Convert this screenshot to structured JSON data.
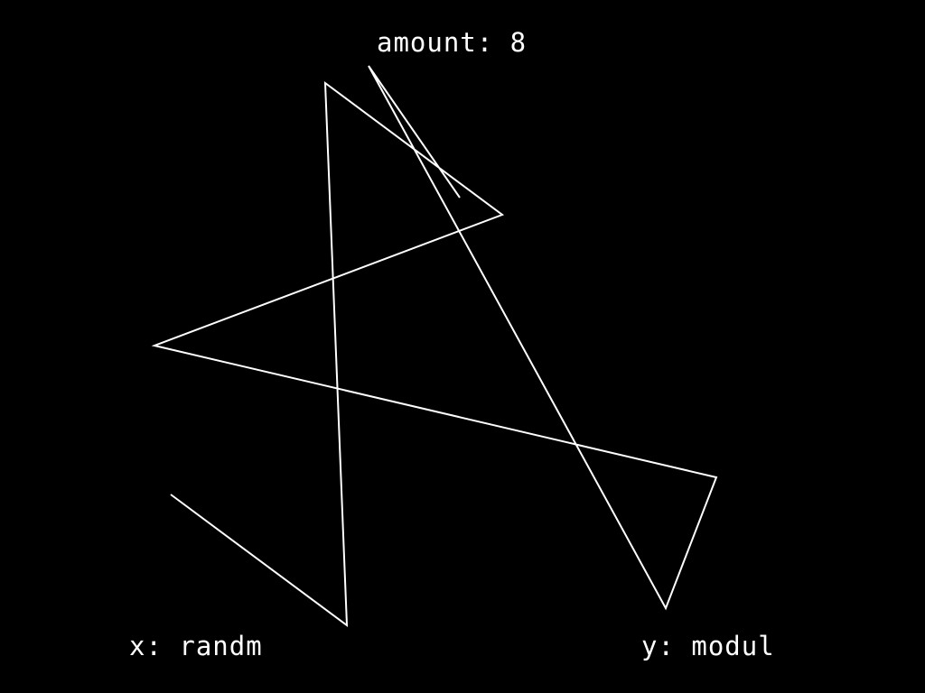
{
  "hud": {
    "amount_text": "amount: 8",
    "x_text": "x: randm",
    "y_text": "y: modul"
  },
  "colors": {
    "background": "#000000",
    "foreground": "#ffffff"
  }
}
